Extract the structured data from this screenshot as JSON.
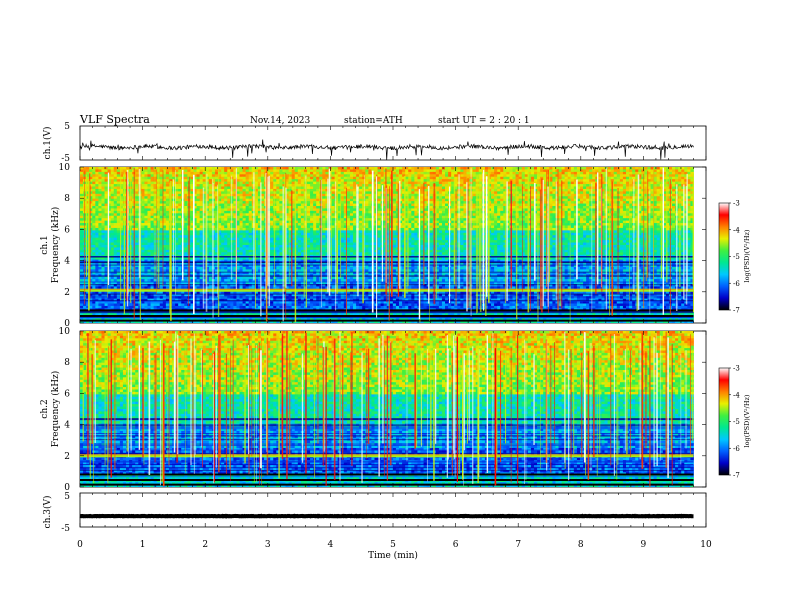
{
  "header": {
    "title": "VLF  Spectra",
    "date": "Nov.14, 2023",
    "station": "station=ATH",
    "start": "start  UT  =   2  : 20 : 1"
  },
  "chart_data": [
    {
      "type": "line",
      "id": "ch1-waveform",
      "ylabel": "ch.1(V)",
      "ylim": [
        -5,
        5
      ],
      "yticks": [
        "5",
        "-5"
      ],
      "xlim": [
        0,
        10
      ],
      "data_end_min": 9.8,
      "baseline_v": -1.2,
      "color": "#000000"
    },
    {
      "type": "heatmap",
      "id": "ch1-spectrogram",
      "ylabel_lines": [
        "ch.1",
        "Frequency  (kHz)"
      ],
      "ylim": [
        0,
        10
      ],
      "yticks": [
        "0",
        "2",
        "4",
        "6",
        "8",
        "10"
      ],
      "xlim": [
        0,
        10
      ],
      "data_end_min": 9.8,
      "signal_line_khz": 2.1,
      "colorbar": {
        "label": "log(PSD)(V²/Hz)",
        "range": [
          -7,
          -3
        ],
        "ticks": [
          "-3",
          "-4",
          "-5",
          "-6",
          "-7"
        ],
        "colors": [
          "#000000",
          "#0000c8",
          "#0060ff",
          "#00c8ff",
          "#00e890",
          "#40f040",
          "#e8f000",
          "#ff8000",
          "#ff0000",
          "#ffffff"
        ]
      }
    },
    {
      "type": "heatmap",
      "id": "ch2-spectrogram",
      "ylabel_lines": [
        "ch.2",
        "Frequency  (kHz)"
      ],
      "ylim": [
        0,
        10
      ],
      "yticks": [
        "0",
        "2",
        "4",
        "6",
        "8",
        "10"
      ],
      "xlim": [
        0,
        10
      ],
      "data_end_min": 9.8,
      "signal_line_khz": 2.0,
      "colorbar": {
        "label": "log(PSD)(V²/Hz)",
        "range": [
          -7,
          -3
        ],
        "ticks": [
          "-3",
          "-4",
          "-5",
          "-6",
          "-7"
        ],
        "colors": [
          "#000000",
          "#0000c8",
          "#0060ff",
          "#00c8ff",
          "#00e890",
          "#40f040",
          "#e8f000",
          "#ff8000",
          "#ff0000",
          "#ffffff"
        ]
      }
    },
    {
      "type": "line",
      "id": "ch3-waveform",
      "ylabel": "ch.3(V)",
      "ylim": [
        -5,
        5
      ],
      "yticks": [
        "5",
        "-5"
      ],
      "xlim": [
        0,
        10
      ],
      "data_end_min": 9.8,
      "baseline_v": -1.8,
      "color": "#000000"
    }
  ],
  "xaxis": {
    "label": "Time  (min)",
    "ticks": [
      "0",
      "1",
      "2",
      "3",
      "4",
      "5",
      "6",
      "7",
      "8",
      "9",
      "10"
    ]
  }
}
